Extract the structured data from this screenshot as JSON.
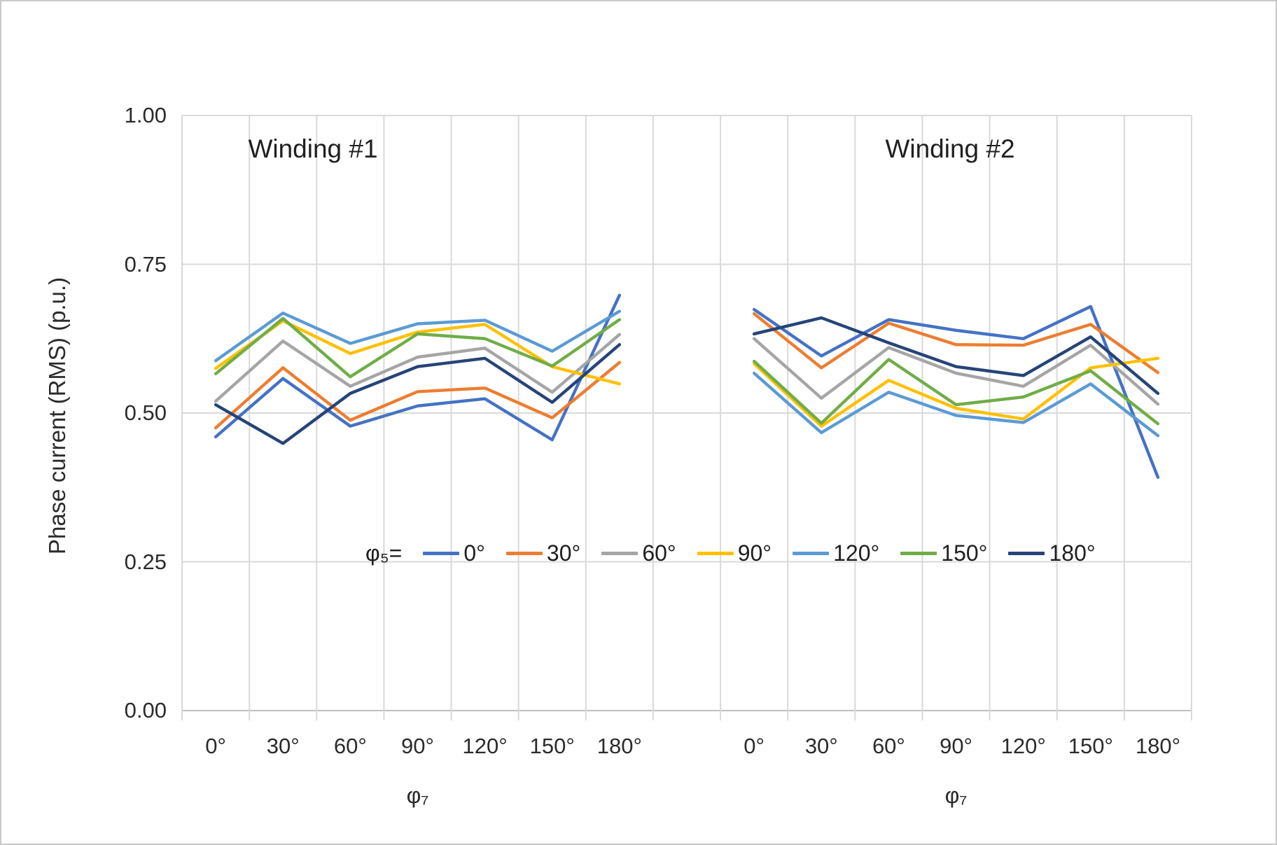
{
  "figure": {
    "y_axis": {
      "title": "Phase current (RMS) (p.u.)",
      "tick_labels": [
        "1.00",
        "0.75",
        "0.50",
        "0.25",
        "0.00"
      ],
      "min": 0.0,
      "max": 1.0,
      "grid": "on"
    },
    "x_axis": {
      "title": "φ₇",
      "tick_labels": [
        "0°",
        "30°",
        "60°",
        "90°",
        "120°",
        "150°",
        "180°"
      ]
    },
    "legend": {
      "prefix": "φ₅=",
      "position": "inside-bottom-center",
      "entries": [
        {
          "label": "0°",
          "color": "#4472C4"
        },
        {
          "label": "30°",
          "color": "#ED7D31"
        },
        {
          "label": "60°",
          "color": "#A5A5A5"
        },
        {
          "label": "90°",
          "color": "#FFC000"
        },
        {
          "label": "120°",
          "color": "#5B9BD5"
        },
        {
          "label": "150°",
          "color": "#70AD47"
        },
        {
          "label": "180°",
          "color": "#264478"
        }
      ]
    },
    "colors": {
      "gridline": "#d9d9d9",
      "axis_line": "#bfbfbf",
      "text": "#2b2b2b"
    }
  },
  "chart_data": [
    {
      "type": "line",
      "title": "Winding #1",
      "xlabel": "φ₇",
      "ylabel": "Phase current (RMS) (p.u.)",
      "ylim": [
        0.0,
        1.0
      ],
      "categories": [
        "0°",
        "30°",
        "60°",
        "90°",
        "120°",
        "150°",
        "180°"
      ],
      "series": [
        {
          "name": "0°",
          "color": "#4472C4",
          "values": [
            0.46,
            0.558,
            0.478,
            0.512,
            0.524,
            0.455,
            0.698
          ]
        },
        {
          "name": "30°",
          "color": "#ED7D31",
          "values": [
            0.475,
            0.576,
            0.488,
            0.536,
            0.542,
            0.492,
            0.585
          ]
        },
        {
          "name": "60°",
          "color": "#A5A5A5",
          "values": [
            0.52,
            0.621,
            0.545,
            0.594,
            0.609,
            0.535,
            0.632
          ]
        },
        {
          "name": "90°",
          "color": "#FFC000",
          "values": [
            0.575,
            0.655,
            0.6,
            0.636,
            0.649,
            0.578,
            0.549
          ]
        },
        {
          "name": "120°",
          "color": "#5B9BD5",
          "values": [
            0.588,
            0.668,
            0.617,
            0.65,
            0.656,
            0.604,
            0.671
          ]
        },
        {
          "name": "150°",
          "color": "#70AD47",
          "values": [
            0.566,
            0.659,
            0.561,
            0.633,
            0.625,
            0.579,
            0.657
          ]
        },
        {
          "name": "180°",
          "color": "#264478",
          "values": [
            0.514,
            0.449,
            0.533,
            0.578,
            0.592,
            0.518,
            0.615
          ]
        }
      ]
    },
    {
      "type": "line",
      "title": "Winding #2",
      "xlabel": "φ₇",
      "ylabel": "Phase current (RMS) (p.u.)",
      "ylim": [
        0.0,
        1.0
      ],
      "categories": [
        "0°",
        "30°",
        "60°",
        "90°",
        "120°",
        "150°",
        "180°"
      ],
      "series": [
        {
          "name": "0°",
          "color": "#4472C4",
          "values": [
            0.674,
            0.596,
            0.657,
            0.639,
            0.625,
            0.679,
            0.392
          ]
        },
        {
          "name": "30°",
          "color": "#ED7D31",
          "values": [
            0.667,
            0.576,
            0.651,
            0.615,
            0.614,
            0.649,
            0.568
          ]
        },
        {
          "name": "60°",
          "color": "#A5A5A5",
          "values": [
            0.625,
            0.525,
            0.61,
            0.567,
            0.545,
            0.614,
            0.515
          ]
        },
        {
          "name": "90°",
          "color": "#FFC000",
          "values": [
            0.583,
            0.478,
            0.555,
            0.508,
            0.49,
            0.576,
            0.592
          ]
        },
        {
          "name": "120°",
          "color": "#5B9BD5",
          "values": [
            0.567,
            0.467,
            0.535,
            0.496,
            0.484,
            0.549,
            0.462
          ]
        },
        {
          "name": "150°",
          "color": "#70AD47",
          "values": [
            0.587,
            0.483,
            0.59,
            0.514,
            0.527,
            0.571,
            0.482
          ]
        },
        {
          "name": "180°",
          "color": "#264478",
          "values": [
            0.633,
            0.66,
            0.618,
            0.578,
            0.563,
            0.628,
            0.533
          ]
        }
      ]
    }
  ]
}
